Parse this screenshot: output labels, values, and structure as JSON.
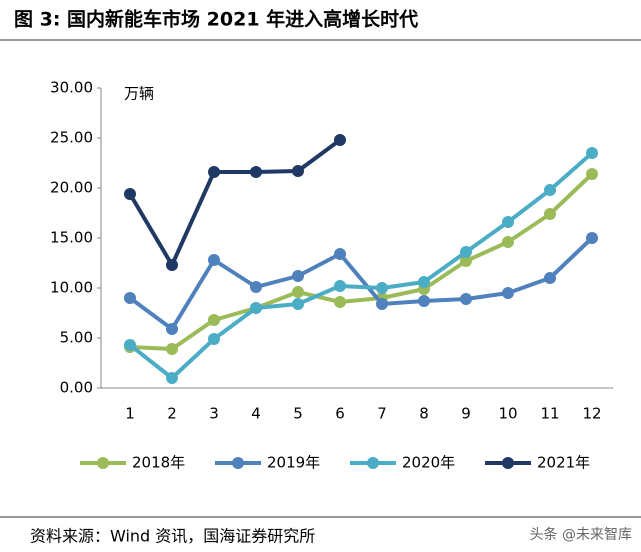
{
  "chart_data": {
    "type": "line",
    "title": "图 3:  国内新能车市场 2021 年进入高增长时代",
    "unit": "万辆",
    "categories": [
      "1",
      "2",
      "3",
      "4",
      "5",
      "6",
      "7",
      "8",
      "9",
      "10",
      "11",
      "12"
    ],
    "series": [
      {
        "name": "2018年",
        "color": "#9bbb59",
        "values": [
          4.1,
          3.9,
          6.8,
          8.0,
          9.6,
          8.6,
          9.0,
          9.9,
          12.7,
          14.6,
          17.4,
          21.4
        ]
      },
      {
        "name": "2019年",
        "color": "#4f81bd",
        "values": [
          9.0,
          5.9,
          12.8,
          10.1,
          11.2,
          13.4,
          8.4,
          8.7,
          8.9,
          9.5,
          11.0,
          15.0
        ]
      },
      {
        "name": "2020年",
        "color": "#4bacc6",
        "values": [
          4.3,
          1.0,
          4.9,
          8.0,
          8.4,
          10.2,
          10.0,
          10.6,
          13.6,
          16.6,
          19.8,
          23.5
        ]
      },
      {
        "name": "2021年",
        "color": "#1f3864",
        "values": [
          19.4,
          12.3,
          21.6,
          21.6,
          21.7,
          24.8,
          null,
          null,
          null,
          null,
          null,
          null
        ]
      }
    ],
    "ylim": [
      0,
      30
    ],
    "yticks": [
      {
        "value": 0,
        "label": "0.00"
      },
      {
        "value": 5,
        "label": "5.00"
      },
      {
        "value": 10,
        "label": "10.00"
      },
      {
        "value": 15,
        "label": "15.00"
      },
      {
        "value": 20,
        "label": "20.00"
      },
      {
        "value": 25,
        "label": "25.00"
      },
      {
        "value": 30,
        "label": "30.00"
      }
    ],
    "source": "资料来源：Wind 资讯，国海证券研究所",
    "watermark": "头条 @未来智库"
  }
}
